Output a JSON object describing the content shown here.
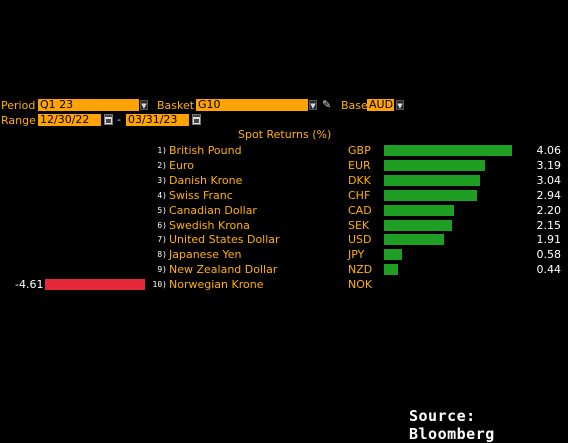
{
  "controls": {
    "period_label": "Period",
    "period_value": "Q1 23",
    "basket_label": "Basket",
    "basket_value": "G10",
    "base_label": "Base",
    "base_value": "AUD",
    "range_label": "Range",
    "range_start": "12/30/22",
    "range_sep": "-",
    "range_end": "03/31/23"
  },
  "section_title": "Spot Returns (%)",
  "colors": {
    "positive": "#1e9e23",
    "negative": "#e5283c",
    "accent": "#ffa300"
  },
  "chart_data": {
    "type": "bar",
    "orientation": "horizontal",
    "title": "Spot Returns (%)",
    "rows": [
      {
        "rank": "1)",
        "name": "British Pound",
        "code": "GBP",
        "value": 4.06,
        "label": "4.06"
      },
      {
        "rank": "2)",
        "name": "Euro",
        "code": "EUR",
        "value": 3.19,
        "label": "3.19"
      },
      {
        "rank": "3)",
        "name": "Danish Krone",
        "code": "DKK",
        "value": 3.04,
        "label": "3.04"
      },
      {
        "rank": "4)",
        "name": "Swiss Franc",
        "code": "CHF",
        "value": 2.94,
        "label": "2.94"
      },
      {
        "rank": "5)",
        "name": "Canadian Dollar",
        "code": "CAD",
        "value": 2.2,
        "label": "2.20"
      },
      {
        "rank": "6)",
        "name": "Swedish Krona",
        "code": "SEK",
        "value": 2.15,
        "label": "2.15"
      },
      {
        "rank": "7)",
        "name": "United States Dollar",
        "code": "USD",
        "value": 1.91,
        "label": "1.91"
      },
      {
        "rank": "8)",
        "name": "Japanese Yen",
        "code": "JPY",
        "value": 0.58,
        "label": "0.58"
      },
      {
        "rank": "9)",
        "name": "New Zealand Dollar",
        "code": "NZD",
        "value": 0.44,
        "label": "0.44"
      },
      {
        "rank": "10)",
        "name": "Norwegian Krone",
        "code": "NOK",
        "value": -4.61,
        "label": "-4.61"
      }
    ]
  },
  "source": "Source: Bloomberg"
}
